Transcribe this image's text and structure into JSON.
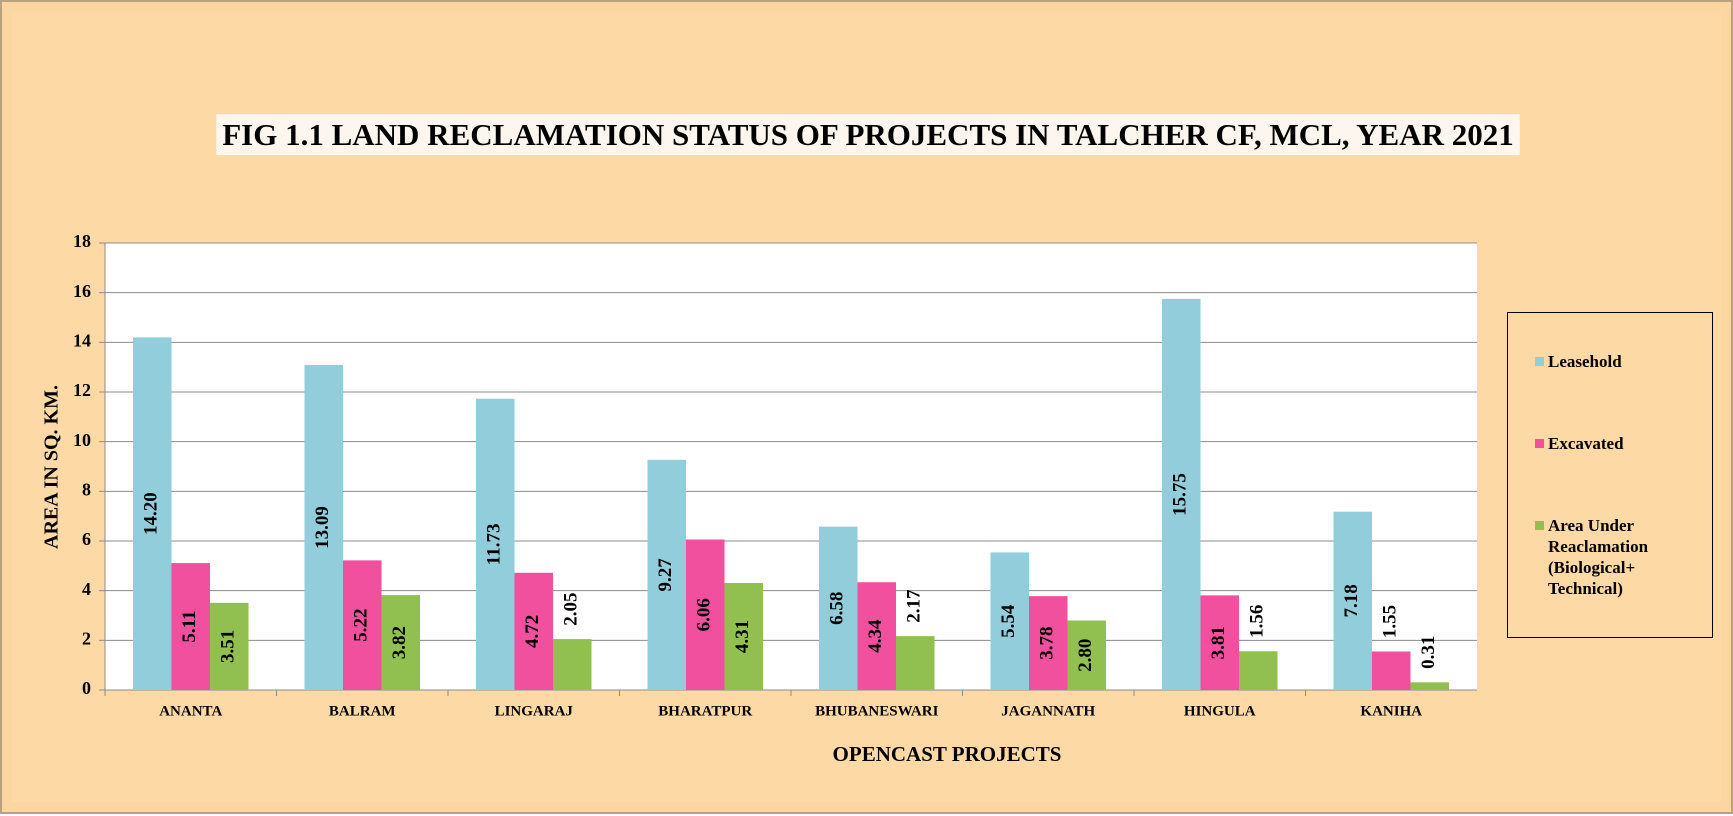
{
  "chart_data": {
    "type": "bar",
    "title": "FIG 1.1  LAND RECLAMATION STATUS OF PROJECTS IN TALCHER CF,  MCL, YEAR 2021",
    "x_label": "OPENCAST PROJECTS",
    "y_label": "AREA IN SQ. KM.",
    "categories": [
      "ANANTA",
      "BALRAM",
      "LINGARAJ",
      "BHARATPUR",
      "BHUBANESWARI",
      "JAGANNATH",
      "HINGULA",
      "KANIHA"
    ],
    "series": [
      {
        "name": "Leasehold",
        "color": "#92cddc",
        "values": [
          14.2,
          13.09,
          11.73,
          9.27,
          6.58,
          5.54,
          15.75,
          7.18
        ],
        "value_labels": [
          "14.20",
          "13.09",
          "11.73",
          "9.27",
          "6.58",
          "5.54",
          "15.75",
          "7.18"
        ]
      },
      {
        "name": "Excavated",
        "color": "#f0509d",
        "values": [
          5.11,
          5.22,
          4.72,
          6.06,
          4.34,
          3.78,
          3.81,
          1.55
        ],
        "value_labels": [
          "5.11",
          "5.22",
          "4.72",
          "6.06",
          "4.34",
          "3.78",
          "3.81",
          "1.55"
        ]
      },
      {
        "name": "Area Under Reaclamation (Biological+ Technical)",
        "color": "#92c050",
        "values": [
          3.51,
          3.82,
          2.05,
          4.31,
          2.17,
          2.8,
          1.56,
          0.31
        ],
        "value_labels": [
          "3.51",
          "3.82",
          "2.05",
          "4.31",
          "2.17",
          "2.80",
          "1.56",
          "0.31"
        ]
      }
    ],
    "ylim": [
      0,
      18
    ],
    "yticks": [
      0,
      2,
      4,
      6,
      8,
      10,
      12,
      14,
      16,
      18
    ],
    "grid": true,
    "legend": "right"
  }
}
